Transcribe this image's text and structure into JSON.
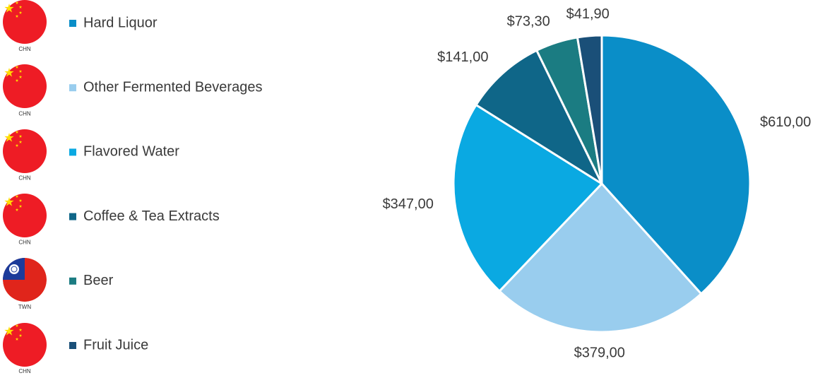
{
  "chart_data": {
    "type": "pie",
    "categories": [
      "Hard Liquor",
      "Other Fermented Beverages",
      "Flavored Water",
      "Coffee & Tea Extracts",
      "Beer",
      "Fruit Juice"
    ],
    "values": [
      610,
      379,
      347,
      141,
      73.3,
      41.9
    ],
    "value_labels": [
      "$610,00",
      "$379,00",
      "$347,00",
      "$141,00",
      "$73,30",
      "$41,90"
    ],
    "colors": [
      "#0a8ec8",
      "#99cdee",
      "#0aa9e2",
      "#0f6688",
      "#1b7c82",
      "#1a4f78"
    ],
    "country_labels": [
      "CHN",
      "CHN",
      "CHN",
      "CHN",
      "TWN",
      "CHN"
    ]
  }
}
